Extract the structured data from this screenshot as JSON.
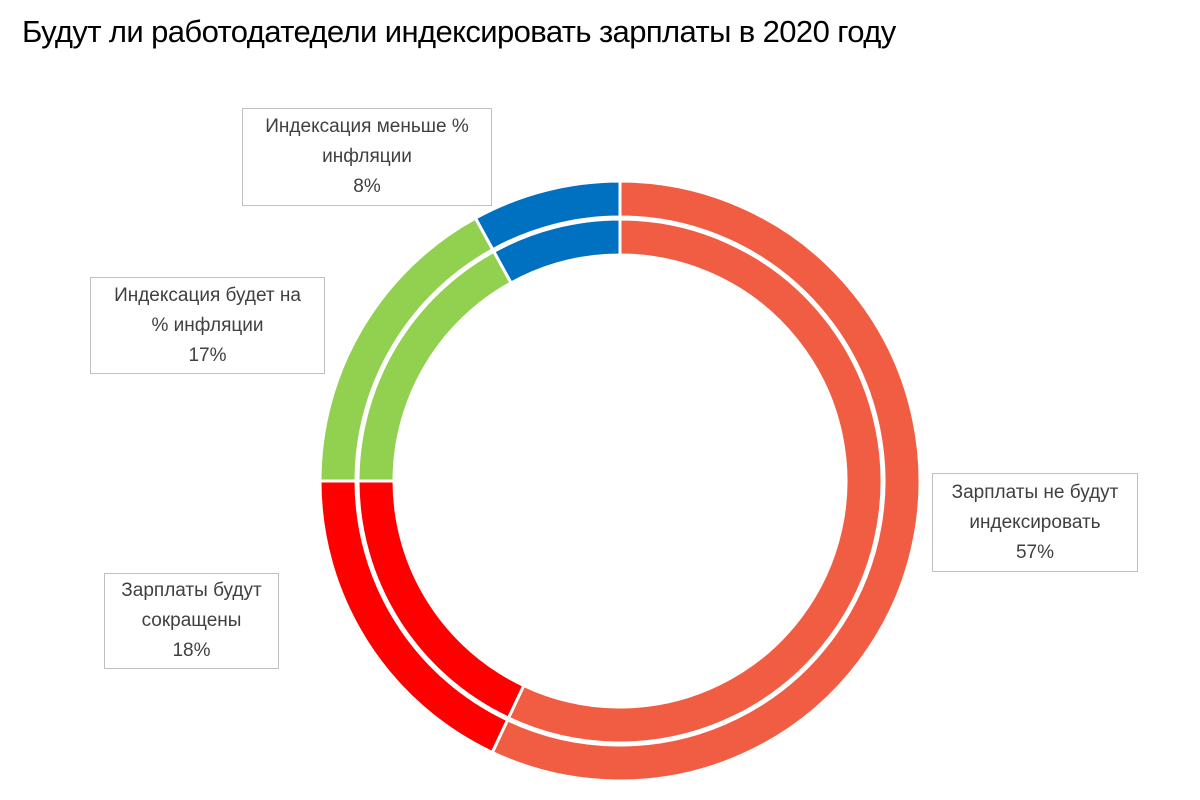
{
  "chart": {
    "title": "Будут ли работодатедели индексировать зарплаты в 2020 году"
  },
  "chart_data": {
    "type": "pie",
    "variant": "double-ring-donut",
    "title": "Будут ли работодатедели индексировать зарплаты в 2020 году",
    "legend": "none",
    "units": "%",
    "slices": [
      {
        "label_lines": [
          "Зарплаты не будут",
          "индексировать"
        ],
        "value": 57,
        "value_label": "57%",
        "color": "#f15d43"
      },
      {
        "label_lines": [
          "Зарплаты будут",
          "сокращены"
        ],
        "value": 18,
        "value_label": "18%",
        "color": "#ff0000"
      },
      {
        "label_lines": [
          "Индексация будет на",
          "% инфляции"
        ],
        "value": 17,
        "value_label": "17%",
        "color": "#92d050"
      },
      {
        "label_lines": [
          "Индексация меньше %",
          "инфляции"
        ],
        "value": 8,
        "value_label": "8%",
        "color": "#0070c0"
      }
    ]
  }
}
